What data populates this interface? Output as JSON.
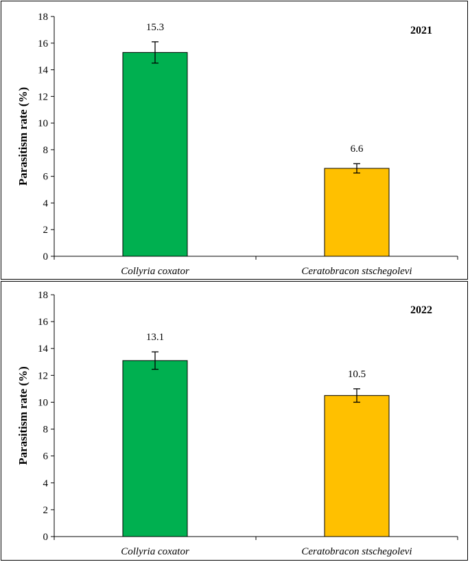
{
  "chart_data": [
    {
      "type": "bar",
      "title": "2021",
      "ylabel": "Parasitism rate (%)",
      "xlabel": "",
      "ylim": [
        0,
        18
      ],
      "yticks": [
        0,
        2,
        4,
        6,
        8,
        10,
        12,
        14,
        16,
        18
      ],
      "categories": [
        "Collyria coxator",
        "Ceratobracon stschegolevi"
      ],
      "values": [
        15.3,
        6.6
      ],
      "error": [
        0.8,
        0.35
      ],
      "data_labels": [
        "15.3",
        "6.6"
      ],
      "colors": [
        "#00b050",
        "#ffc000"
      ]
    },
    {
      "type": "bar",
      "title": "2022",
      "ylabel": "Parasitism rate (%)",
      "xlabel": "",
      "ylim": [
        0,
        18
      ],
      "yticks": [
        0,
        2,
        4,
        6,
        8,
        10,
        12,
        14,
        16,
        18
      ],
      "categories": [
        "Collyria coxator",
        "Ceratobracon stschegolevi"
      ],
      "values": [
        13.1,
        10.5
      ],
      "error": [
        0.65,
        0.5
      ],
      "data_labels": [
        "13.1",
        "10.5"
      ],
      "colors": [
        "#00b050",
        "#ffc000"
      ]
    }
  ]
}
